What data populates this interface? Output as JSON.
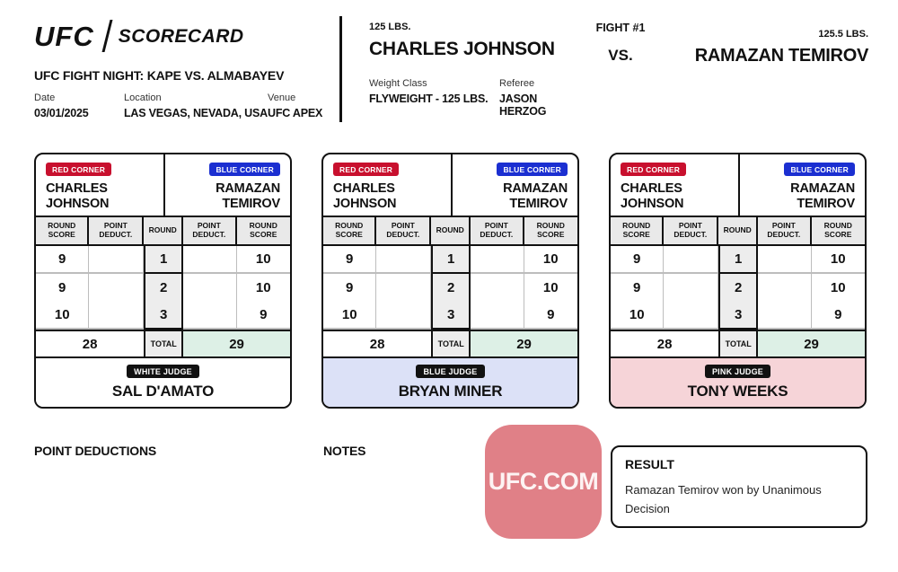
{
  "header": {
    "logo_ufc": "UFC",
    "logo_scorecard": "SCORECARD",
    "event_title": "UFC FIGHT NIGHT: KAPE VS. ALMABAYEV",
    "date_label": "Date",
    "date_value": "03/01/2025",
    "location_label": "Location",
    "location_value": "LAS VEGAS, NEVADA, USA",
    "venue_label": "Venue",
    "venue_value": "UFC APEX",
    "red_fighter_weight": "125 LBS.",
    "red_fighter_name": "CHARLES JOHNSON",
    "weight_class_label": "Weight Class",
    "weight_class_value": "FLYWEIGHT - 125 LBS.",
    "referee_label": "Referee",
    "referee_value": "JASON HERZOG",
    "fight_number": "FIGHT #1",
    "vs_label": "VS.",
    "blue_fighter_weight": "125.5 LBS.",
    "blue_fighter_name": "RAMAZAN TEMIROV"
  },
  "scorecard_common": {
    "red_corner_label": "RED CORNER",
    "blue_corner_label": "BLUE CORNER",
    "red_fighter_first": "CHARLES",
    "red_fighter_last": "JOHNSON",
    "blue_fighter_first": "RAMAZAN",
    "blue_fighter_last": "TEMIROV",
    "columns": [
      "ROUND SCORE",
      "POINT DEDUCT.",
      "ROUND",
      "POINT DEDUCT.",
      "ROUND SCORE"
    ],
    "total_label": "TOTAL"
  },
  "cards": [
    {
      "judge_badge": "WHITE JUDGE",
      "judge_name": "SAL D'AMATO",
      "rounds": [
        {
          "round": "1",
          "red": "9",
          "blue": "10"
        },
        {
          "round": "2",
          "red": "9",
          "blue": "10"
        },
        {
          "round": "3",
          "red": "10",
          "blue": "9"
        }
      ],
      "red_total": "28",
      "blue_total": "29"
    },
    {
      "judge_badge": "BLUE JUDGE",
      "judge_name": "BRYAN MINER",
      "rounds": [
        {
          "round": "1",
          "red": "9",
          "blue": "10"
        },
        {
          "round": "2",
          "red": "9",
          "blue": "10"
        },
        {
          "round": "3",
          "red": "10",
          "blue": "9"
        }
      ],
      "red_total": "28",
      "blue_total": "29"
    },
    {
      "judge_badge": "PINK JUDGE",
      "judge_name": "TONY WEEKS",
      "rounds": [
        {
          "round": "1",
          "red": "9",
          "blue": "10"
        },
        {
          "round": "2",
          "red": "9",
          "blue": "10"
        },
        {
          "round": "3",
          "red": "10",
          "blue": "9"
        }
      ],
      "red_total": "28",
      "blue_total": "29"
    }
  ],
  "footer": {
    "point_deductions_label": "POINT DEDUCTIONS",
    "notes_label": "NOTES",
    "logo_text": "UFC.COM",
    "result_label": "RESULT",
    "result_text": "Ramazan Temirov won by Unanimous Decision"
  },
  "colors": {
    "red_corner": "#c8102e",
    "blue_corner": "#1b2fd1",
    "total_green": "#ddf0e6",
    "judge_blue_bg": "#dce1f7",
    "judge_pink_bg": "#f6d4d8",
    "logo_pink": "#e08087",
    "ink": "#111111"
  }
}
